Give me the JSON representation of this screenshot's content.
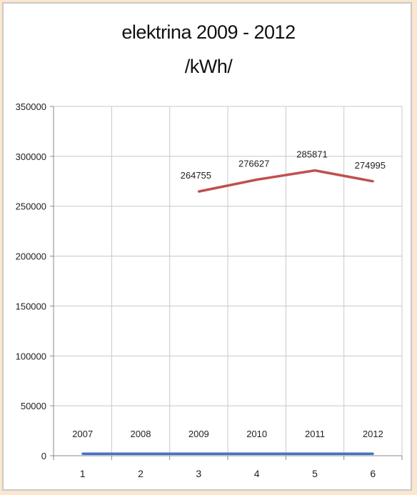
{
  "chart_data": {
    "type": "line",
    "title": "elektrina 2009 - 2012",
    "subtitle": "/kWh/",
    "categories": [
      "1",
      "2",
      "3",
      "4",
      "5",
      "6"
    ],
    "ylim": [
      0,
      350000
    ],
    "yticks": [
      "0",
      "50000",
      "100000",
      "150000",
      "200000",
      "250000",
      "300000",
      "350000"
    ],
    "grid": true,
    "series": [
      {
        "color": "#4472c4",
        "values": [
          2007,
          2008,
          2009,
          2010,
          2011,
          2012
        ],
        "labels": [
          "2007",
          "2008",
          "2009",
          "2010",
          "2011",
          "2012"
        ]
      },
      {
        "color": "#c0504d",
        "values": [
          null,
          null,
          264755,
          276627,
          285871,
          274995
        ],
        "labels": [
          "",
          "",
          "264755",
          "276627",
          "285871",
          "274995"
        ]
      }
    ]
  }
}
